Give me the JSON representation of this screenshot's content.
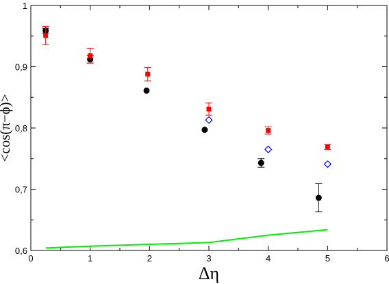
{
  "chart_data": {
    "type": "scatter",
    "title": "",
    "xlabel": "Δη",
    "ylabel": "<cos(π−ϕ)>",
    "xlim": [
      0,
      6
    ],
    "ylim": [
      0.6,
      1.0
    ],
    "x_ticks": [
      0,
      1,
      2,
      3,
      4,
      5,
      6
    ],
    "x_tick_labels": [
      "0",
      "1",
      "2",
      "3",
      "4",
      "5",
      "6"
    ],
    "y_ticks": [
      0.6,
      0.7,
      0.8,
      0.9,
      1.0
    ],
    "y_tick_labels": [
      "0,6",
      "0,7",
      "0,8",
      "0,9",
      "1"
    ],
    "grid": false,
    "series": [
      {
        "marker": "circle",
        "color": "#000000",
        "points": [
          {
            "x": 0.25,
            "y": 0.959,
            "err": 0.004
          },
          {
            "x": 1.0,
            "y": 0.912,
            "err": 0.006
          },
          {
            "x": 1.95,
            "y": 0.861,
            "err": 0.0
          },
          {
            "x": 2.93,
            "y": 0.797,
            "err": 0.0
          },
          {
            "x": 3.88,
            "y": 0.743,
            "err": 0.007
          },
          {
            "x": 4.85,
            "y": 0.686,
            "err": 0.023
          }
        ]
      },
      {
        "marker": "square",
        "color": "#ff0000",
        "points": [
          {
            "x": 0.25,
            "y": 0.951,
            "err": 0.015
          },
          {
            "x": 1.0,
            "y": 0.918,
            "err": 0.012
          },
          {
            "x": 1.97,
            "y": 0.888,
            "err": 0.011
          },
          {
            "x": 3.0,
            "y": 0.831,
            "err": 0.01
          },
          {
            "x": 4.0,
            "y": 0.796,
            "err": 0.006
          },
          {
            "x": 5.0,
            "y": 0.769,
            "err": 0.004
          }
        ]
      },
      {
        "marker": "diamond",
        "color": "#0000ff",
        "points": [
          {
            "x": 3.0,
            "y": 0.813
          },
          {
            "x": 4.0,
            "y": 0.765
          },
          {
            "x": 5.0,
            "y": 0.741
          }
        ]
      },
      {
        "marker": "line",
        "color": "#00ee00",
        "points": [
          {
            "x": 0.25,
            "y": 0.604
          },
          {
            "x": 1.0,
            "y": 0.607
          },
          {
            "x": 2.0,
            "y": 0.61
          },
          {
            "x": 3.0,
            "y": 0.613
          },
          {
            "x": 4.0,
            "y": 0.625
          },
          {
            "x": 5.0,
            "y": 0.634
          }
        ]
      }
    ]
  }
}
